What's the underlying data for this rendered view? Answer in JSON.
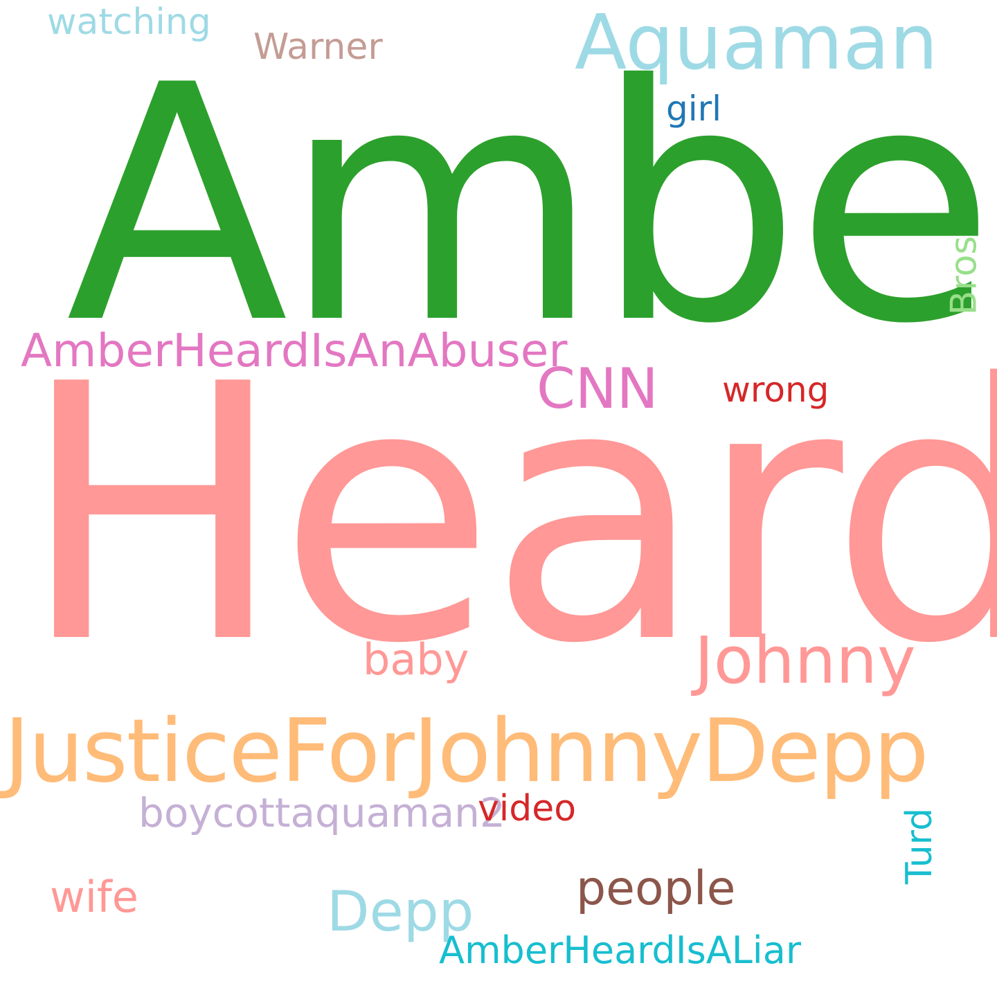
{
  "words": {
    "amber": {
      "text": "Amber",
      "color": "#2ca02c"
    },
    "heard": {
      "text": "Heard",
      "color": "#ff9896"
    },
    "justice": {
      "text": "JusticeForJohnnyDepp",
      "color": "#ffbb78"
    },
    "aquaman": {
      "text": "Aquaman",
      "color": "#9edae5"
    },
    "johnny": {
      "text": "Johnny",
      "color": "#ff9896"
    },
    "abuser": {
      "text": "AmberHeardIsAnAbuser",
      "color": "#e377c2"
    },
    "cnn": {
      "text": "CNN",
      "color": "#e377c2"
    },
    "people": {
      "text": "people",
      "color": "#8c564b"
    },
    "depp": {
      "text": "Depp",
      "color": "#9edae5"
    },
    "liar": {
      "text": "AmberHeardIsALiar",
      "color": "#17becf"
    },
    "boycott": {
      "text": "boycottaquaman2",
      "color": "#c5b0d5"
    },
    "video": {
      "text": "video",
      "color": "#d62728"
    },
    "baby": {
      "text": "baby",
      "color": "#ff9896"
    },
    "wife": {
      "text": "wife",
      "color": "#ff9896"
    },
    "watching": {
      "text": "watching",
      "color": "#9edae5"
    },
    "warner": {
      "text": "Warner",
      "color": "#c49c94"
    },
    "girl": {
      "text": "girl",
      "color": "#1f77b4"
    },
    "wrong": {
      "text": "wrong",
      "color": "#d62728"
    },
    "bros": {
      "text": "Bros",
      "color": "#98df8a"
    },
    "turd": {
      "text": "Turd",
      "color": "#17becf"
    }
  }
}
